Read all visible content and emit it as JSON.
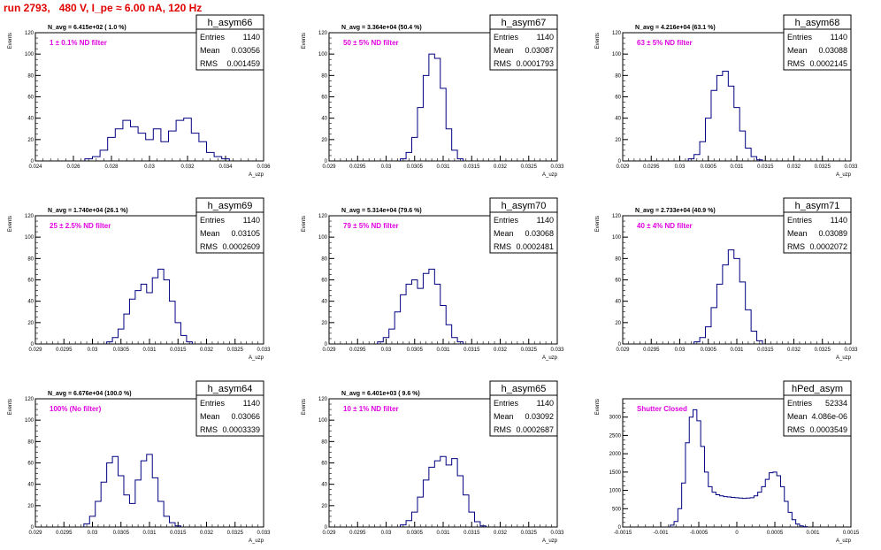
{
  "header": {
    "title": "run 2793,   480 V, I_pe ≈ 6.00 nA, 120 Hz"
  },
  "chart_data": [
    {
      "type": "histogram",
      "stats_title": "h_asym66",
      "navg": "N_avg = 6.415e+02 ( 1.0 %)",
      "filter_label": "1 ± 0.1% ND filter",
      "stats": [
        {
          "label": "Entries",
          "value": "1140"
        },
        {
          "label": "Mean",
          "value": "0.03056"
        },
        {
          "label": "RMS",
          "value": "0.001459"
        }
      ],
      "ylabel": "Events",
      "xlabel": "A_uzp",
      "xlim": [
        0.024,
        0.036
      ],
      "ylim": [
        0,
        120
      ],
      "xticks": [
        "0.024",
        "0.026",
        "0.028",
        "0.03",
        "0.032",
        "0.034",
        "0.036"
      ],
      "yticks": [
        "0",
        "20",
        "40",
        "60",
        "80",
        "100",
        "120"
      ],
      "x": [
        0.0268,
        0.0272,
        0.0276,
        0.028,
        0.0284,
        0.0288,
        0.0292,
        0.0296,
        0.03,
        0.0304,
        0.0308,
        0.0312,
        0.0316,
        0.032,
        0.0324,
        0.0328,
        0.0332,
        0.0336,
        0.034
      ],
      "y": [
        2,
        4,
        10,
        22,
        30,
        38,
        32,
        26,
        20,
        30,
        18,
        28,
        38,
        40,
        26,
        18,
        8,
        4,
        2
      ]
    },
    {
      "type": "histogram",
      "stats_title": "h_asym67",
      "navg": "N_avg = 3.364e+04 (50.4 %)",
      "filter_label": "50 ± 5% ND filter",
      "stats": [
        {
          "label": "Entries",
          "value": "1140"
        },
        {
          "label": "Mean",
          "value": "0.03087"
        },
        {
          "label": "RMS",
          "value": "0.0001793"
        }
      ],
      "ylabel": "Events",
      "xlabel": "A_uzp",
      "xlim": [
        0.029,
        0.033
      ],
      "ylim": [
        0,
        120
      ],
      "xticks": [
        "0.029",
        "0.0295",
        "0.03",
        "0.0305",
        "0.031",
        "0.0315",
        "0.032",
        "0.0325",
        "0.033"
      ],
      "yticks": [
        "0",
        "20",
        "40",
        "60",
        "80",
        "100",
        "120"
      ],
      "x": [
        0.0303,
        0.0304,
        0.0305,
        0.0306,
        0.0307,
        0.0308,
        0.0309,
        0.031,
        0.0311,
        0.0312,
        0.0313
      ],
      "y": [
        2,
        8,
        22,
        50,
        80,
        100,
        96,
        68,
        30,
        10,
        2
      ]
    },
    {
      "type": "histogram",
      "stats_title": "h_asym68",
      "navg": "N_avg = 4.216e+04 (63.1 %)",
      "filter_label": "63 ± 5% ND filter",
      "stats": [
        {
          "label": "Entries",
          "value": "1140"
        },
        {
          "label": "Mean",
          "value": "0.03088"
        },
        {
          "label": "RMS",
          "value": "0.0002145"
        }
      ],
      "ylabel": "Events",
      "xlabel": "A_uzp",
      "xlim": [
        0.029,
        0.033
      ],
      "ylim": [
        0,
        120
      ],
      "xticks": [
        "0.029",
        "0.0295",
        "0.03",
        "0.0305",
        "0.031",
        "0.0315",
        "0.032",
        "0.0325",
        "0.033"
      ],
      "yticks": [
        "0",
        "20",
        "40",
        "60",
        "80",
        "100",
        "120"
      ],
      "x": [
        0.0302,
        0.0303,
        0.0304,
        0.0305,
        0.0306,
        0.0307,
        0.0308,
        0.0309,
        0.031,
        0.0311,
        0.0312,
        0.0313,
        0.0314
      ],
      "y": [
        2,
        6,
        18,
        40,
        66,
        80,
        84,
        70,
        50,
        28,
        12,
        4,
        1
      ]
    },
    {
      "type": "histogram",
      "stats_title": "h_asym69",
      "navg": "N_avg = 1.740e+04 (26.1 %)",
      "filter_label": "25 ± 2.5% ND filter",
      "stats": [
        {
          "label": "Entries",
          "value": "1140"
        },
        {
          "label": "Mean",
          "value": "0.03105"
        },
        {
          "label": "RMS",
          "value": "0.0002609"
        }
      ],
      "ylabel": "Events",
      "xlabel": "A_uzp",
      "xlim": [
        0.029,
        0.033
      ],
      "ylim": [
        0,
        120
      ],
      "xticks": [
        "0.029",
        "0.0295",
        "0.03",
        "0.0305",
        "0.031",
        "0.0315",
        "0.032",
        "0.0325",
        "0.033"
      ],
      "yticks": [
        "0",
        "20",
        "40",
        "60",
        "80",
        "100",
        "120"
      ],
      "x": [
        0.0303,
        0.0304,
        0.0305,
        0.0306,
        0.0307,
        0.0308,
        0.0309,
        0.031,
        0.0311,
        0.0312,
        0.0313,
        0.0314,
        0.0315,
        0.0316,
        0.0317
      ],
      "y": [
        2,
        6,
        14,
        28,
        42,
        50,
        56,
        48,
        62,
        70,
        60,
        40,
        20,
        8,
        2
      ]
    },
    {
      "type": "histogram",
      "stats_title": "h_asym70",
      "navg": "N_avg = 5.314e+04 (79.6 %)",
      "filter_label": "79 ± 5% ND filter",
      "stats": [
        {
          "label": "Entries",
          "value": "1140"
        },
        {
          "label": "Mean",
          "value": "0.03068"
        },
        {
          "label": "RMS",
          "value": "0.0002481"
        }
      ],
      "ylabel": "Events",
      "xlabel": "A_uzp",
      "xlim": [
        0.029,
        0.033
      ],
      "ylim": [
        0,
        120
      ],
      "xticks": [
        "0.029",
        "0.0295",
        "0.03",
        "0.0305",
        "0.031",
        "0.0315",
        "0.032",
        "0.0325",
        "0.033"
      ],
      "yticks": [
        "0",
        "20",
        "40",
        "60",
        "80",
        "100",
        "120"
      ],
      "x": [
        0.0299,
        0.03,
        0.0301,
        0.0302,
        0.0303,
        0.0304,
        0.0305,
        0.0306,
        0.0307,
        0.0308,
        0.0309,
        0.031,
        0.0311,
        0.0312,
        0.0313
      ],
      "y": [
        2,
        6,
        14,
        30,
        46,
        56,
        60,
        52,
        66,
        70,
        56,
        36,
        18,
        6,
        2
      ]
    },
    {
      "type": "histogram",
      "stats_title": "h_asym71",
      "navg": "N_avg = 2.733e+04 (40.9 %)",
      "filter_label": "40 ± 4% ND filter",
      "stats": [
        {
          "label": "Entries",
          "value": "1140"
        },
        {
          "label": "Mean",
          "value": "0.03089"
        },
        {
          "label": "RMS",
          "value": "0.0002072"
        }
      ],
      "ylabel": "Events",
      "xlabel": "A_uzp",
      "xlim": [
        0.029,
        0.033
      ],
      "ylim": [
        0,
        120
      ],
      "xticks": [
        "0.029",
        "0.0295",
        "0.03",
        "0.0305",
        "0.031",
        "0.0315",
        "0.032",
        "0.0325",
        "0.033"
      ],
      "yticks": [
        "0",
        "20",
        "40",
        "60",
        "80",
        "100",
        "120"
      ],
      "x": [
        0.0303,
        0.0304,
        0.0305,
        0.0306,
        0.0307,
        0.0308,
        0.0309,
        0.031,
        0.0311,
        0.0312,
        0.0313,
        0.0314
      ],
      "y": [
        2,
        6,
        16,
        34,
        56,
        74,
        88,
        80,
        58,
        32,
        12,
        3
      ]
    },
    {
      "type": "histogram",
      "stats_title": "h_asym64",
      "navg": "N_avg = 6.676e+04 (100.0 %)",
      "filter_label": "100% (No filter)",
      "stats": [
        {
          "label": "Entries",
          "value": "1140"
        },
        {
          "label": "Mean",
          "value": "0.03066"
        },
        {
          "label": "RMS",
          "value": "0.0003339"
        }
      ],
      "ylabel": "Events",
      "xlabel": "A_uzp",
      "xlim": [
        0.029,
        0.033
      ],
      "ylim": [
        0,
        120
      ],
      "xticks": [
        "0.029",
        "0.0295",
        "0.03",
        "0.0305",
        "0.031",
        "0.0315",
        "0.032",
        "0.0325",
        "0.033"
      ],
      "yticks": [
        "0",
        "20",
        "40",
        "60",
        "80",
        "100",
        "120"
      ],
      "x": [
        0.0299,
        0.03,
        0.0301,
        0.0302,
        0.0303,
        0.0304,
        0.0305,
        0.0306,
        0.0307,
        0.0308,
        0.0309,
        0.031,
        0.0311,
        0.0312,
        0.0313,
        0.0314,
        0.0315
      ],
      "y": [
        3,
        10,
        24,
        42,
        60,
        66,
        48,
        30,
        22,
        44,
        62,
        68,
        46,
        24,
        10,
        4,
        1
      ]
    },
    {
      "type": "histogram",
      "stats_title": "h_asym65",
      "navg": "N_avg = 6.401e+03 ( 9.6 %)",
      "filter_label": "10 ± 1% ND filter",
      "stats": [
        {
          "label": "Entries",
          "value": "1140"
        },
        {
          "label": "Mean",
          "value": "0.03092"
        },
        {
          "label": "RMS",
          "value": "0.0002687"
        }
      ],
      "ylabel": "Events",
      "xlabel": "A_uzp",
      "xlim": [
        0.029,
        0.033
      ],
      "ylim": [
        0,
        120
      ],
      "xticks": [
        "0.029",
        "0.0295",
        "0.03",
        "0.0305",
        "0.031",
        "0.0315",
        "0.032",
        "0.0325",
        "0.033"
      ],
      "yticks": [
        "0",
        "20",
        "40",
        "60",
        "80",
        "100",
        "120"
      ],
      "x": [
        0.0303,
        0.0304,
        0.0305,
        0.0306,
        0.0307,
        0.0308,
        0.0309,
        0.031,
        0.0311,
        0.0312,
        0.0313,
        0.0314,
        0.0315,
        0.0316,
        0.0317
      ],
      "y": [
        2,
        6,
        14,
        28,
        44,
        56,
        62,
        66,
        58,
        64,
        48,
        30,
        14,
        5,
        1
      ]
    },
    {
      "type": "histogram",
      "stats_title": "hPed_asym",
      "navg": "",
      "filter_label": "Shutter Closed",
      "stats": [
        {
          "label": "Entries",
          "value": "52334"
        },
        {
          "label": "Mean",
          "value": "4.086e-06"
        },
        {
          "label": "RMS",
          "value": "0.0003549"
        }
      ],
      "ylabel": "Events",
      "xlabel": "A_uzp",
      "xlim": [
        -0.0015,
        0.0015
      ],
      "ylim": [
        0,
        3500
      ],
      "xticks": [
        "-0.0015",
        "-0.001",
        "-0.0005",
        "0",
        "0.0005",
        "0.001",
        "0.0015"
      ],
      "yticks": [
        "0",
        "500",
        "1000",
        "1500",
        "2000",
        "2500",
        "3000"
      ],
      "x": [
        -0.00085,
        -0.0008,
        -0.00075,
        -0.0007,
        -0.00065,
        -0.0006,
        -0.00055,
        -0.0005,
        -0.00045,
        -0.0004,
        -0.00035,
        -0.0003,
        -0.00025,
        -0.0002,
        -0.00015,
        -0.0001,
        -5e-05,
        0.0,
        5e-05,
        0.0001,
        0.00015,
        0.0002,
        0.00025,
        0.0003,
        0.00035,
        0.0004,
        0.00045,
        0.0005,
        0.00055,
        0.0006,
        0.00065,
        0.0007,
        0.00075,
        0.0008,
        0.00085,
        0.0009
      ],
      "y": [
        50,
        150,
        500,
        1200,
        2300,
        3000,
        3200,
        2900,
        2200,
        1500,
        1100,
        950,
        880,
        850,
        830,
        820,
        810,
        800,
        790,
        780,
        790,
        800,
        850,
        950,
        1100,
        1300,
        1480,
        1500,
        1400,
        1100,
        700,
        400,
        200,
        80,
        30,
        10
      ]
    }
  ]
}
